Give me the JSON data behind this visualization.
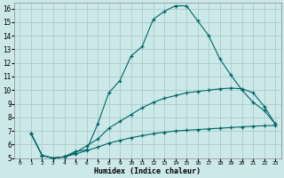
{
  "xlabel": "Humidex (Indice chaleur)",
  "bg_color": "#cce8e8",
  "grid_color": "#aacccc",
  "line_color": "#006666",
  "xlim": [
    -0.5,
    23.5
  ],
  "ylim": [
    5,
    16.4
  ],
  "xticks": [
    0,
    1,
    2,
    3,
    4,
    5,
    6,
    7,
    8,
    9,
    10,
    11,
    12,
    13,
    14,
    15,
    16,
    17,
    18,
    19,
    20,
    21,
    22,
    23
  ],
  "yticks": [
    5,
    6,
    7,
    8,
    9,
    10,
    11,
    12,
    13,
    14,
    15,
    16
  ],
  "line1_x": [
    1,
    2,
    3,
    4,
    5,
    6,
    7,
    8,
    9,
    10,
    11,
    12,
    13,
    14,
    15,
    16,
    17,
    18,
    19,
    20,
    21,
    22,
    23
  ],
  "line1_y": [
    6.8,
    5.2,
    5.0,
    5.1,
    5.5,
    5.6,
    7.5,
    9.8,
    10.7,
    12.5,
    13.2,
    15.2,
    15.8,
    16.2,
    16.2,
    15.1,
    14.0,
    12.3,
    11.1,
    10.0,
    9.1,
    8.5,
    7.5
  ],
  "line2_x": [
    1,
    2,
    3,
    4,
    5,
    6,
    7,
    8,
    9,
    10,
    11,
    12,
    13,
    14,
    15,
    16,
    17,
    18,
    19,
    20,
    21,
    22,
    23
  ],
  "line2_y": [
    6.8,
    5.2,
    5.0,
    5.1,
    5.4,
    5.9,
    6.4,
    7.2,
    7.7,
    8.2,
    8.7,
    9.1,
    9.4,
    9.6,
    9.8,
    9.9,
    10.0,
    10.1,
    10.15,
    10.1,
    9.8,
    8.8,
    7.5
  ],
  "line3_x": [
    1,
    2,
    3,
    4,
    5,
    6,
    7,
    8,
    9,
    10,
    11,
    12,
    13,
    14,
    15,
    16,
    17,
    18,
    19,
    20,
    21,
    22,
    23
  ],
  "line3_y": [
    6.8,
    5.2,
    5.0,
    5.1,
    5.3,
    5.55,
    5.8,
    6.1,
    6.3,
    6.5,
    6.65,
    6.8,
    6.9,
    7.0,
    7.05,
    7.1,
    7.15,
    7.2,
    7.25,
    7.3,
    7.35,
    7.38,
    7.4
  ]
}
